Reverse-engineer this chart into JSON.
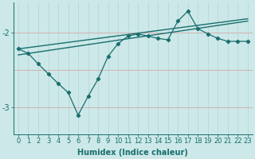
{
  "xlabel": "Humidex (Indice chaleur)",
  "background_color": "#cce8e8",
  "grid_color_v": "#b8d8d8",
  "grid_color_h": "#d4aaaa",
  "line_color": "#1a6e6e",
  "xlim": [
    -0.5,
    23.5
  ],
  "ylim": [
    -3.35,
    -1.6
  ],
  "yticks": [
    -3,
    -2
  ],
  "xticks": [
    0,
    1,
    2,
    3,
    4,
    5,
    6,
    7,
    8,
    9,
    10,
    11,
    12,
    13,
    14,
    15,
    16,
    17,
    18,
    19,
    20,
    21,
    22,
    23
  ],
  "straight_line1_x": [
    0,
    23
  ],
  "straight_line1_y": [
    -2.22,
    -1.82
  ],
  "straight_line2_x": [
    0,
    23
  ],
  "straight_line2_y": [
    -2.3,
    -1.85
  ],
  "jagged_x": [
    0,
    1,
    2,
    3,
    4,
    5,
    6,
    7,
    8,
    9,
    10,
    11,
    12,
    13,
    14,
    15,
    16,
    17,
    18,
    19,
    20,
    21,
    22,
    23
  ],
  "jagged_y": [
    -2.22,
    -2.28,
    -2.42,
    -2.55,
    -2.68,
    -2.8,
    -3.1,
    -2.85,
    -2.62,
    -2.32,
    -2.15,
    -2.05,
    -2.02,
    -2.05,
    -2.08,
    -2.1,
    -1.85,
    -1.72,
    -1.95,
    -2.02,
    -2.08,
    -2.12,
    -2.12,
    -2.12
  ],
  "font_size": 7,
  "tick_font_size": 6,
  "xlabel_fontsize": 7
}
